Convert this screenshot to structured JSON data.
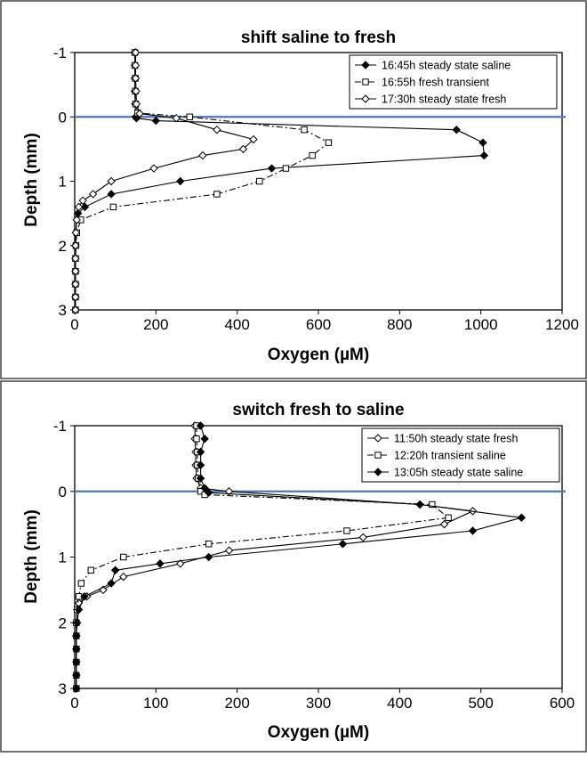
{
  "chart_data": [
    {
      "type": "line",
      "title": "shift saline to fresh",
      "xlabel": "Oxygen (µM)",
      "ylabel": "Depth (mm)",
      "xlim": [
        0,
        1200
      ],
      "ylim": [
        -1,
        3
      ],
      "y_inverted": true,
      "xticks": [
        0,
        200,
        400,
        600,
        800,
        1000,
        1200
      ],
      "yticks": [
        -1,
        0,
        1,
        2,
        3
      ],
      "surface_line": {
        "y": 0,
        "color": "#4a7ab8"
      },
      "legend_position": "top-right",
      "grid": false,
      "series": [
        {
          "name": "16:45h steady state saline",
          "marker": "filled-diamond",
          "line": "solid",
          "points": [
            [
              148,
              -1
            ],
            [
              148,
              -0.8
            ],
            [
              148,
              -0.6
            ],
            [
              148,
              -0.4
            ],
            [
              149,
              -0.2
            ],
            [
              150,
              0
            ],
            [
              152,
              0.02
            ],
            [
              200,
              0.06
            ],
            [
              940,
              0.2
            ],
            [
              1005,
              0.4
            ],
            [
              1008,
              0.6
            ],
            [
              485,
              0.8
            ],
            [
              260,
              1.0
            ],
            [
              90,
              1.2
            ],
            [
              25,
              1.4
            ],
            [
              8,
              1.5
            ],
            [
              5,
              1.6
            ],
            [
              3,
              1.8
            ],
            [
              2,
              2.0
            ],
            [
              2,
              2.2
            ],
            [
              2,
              2.4
            ],
            [
              2,
              2.6
            ],
            [
              2,
              2.8
            ],
            [
              2,
              3.0
            ]
          ]
        },
        {
          "name": "16:55h fresh transient",
          "marker": "open-square",
          "line": "dash-dot",
          "points": [
            [
              148,
              -1
            ],
            [
              148,
              -0.8
            ],
            [
              149,
              -0.6
            ],
            [
              149,
              -0.4
            ],
            [
              150,
              -0.2
            ],
            [
              155,
              -0.06
            ],
            [
              283,
              0.0
            ],
            [
              565,
              0.2
            ],
            [
              625,
              0.4
            ],
            [
              585,
              0.6
            ],
            [
              520,
              0.8
            ],
            [
              455,
              1.0
            ],
            [
              350,
              1.2
            ],
            [
              95,
              1.4
            ],
            [
              15,
              1.6
            ],
            [
              5,
              1.8
            ],
            [
              3,
              2.0
            ],
            [
              2,
              2.2
            ],
            [
              2,
              2.4
            ],
            [
              2,
              2.6
            ],
            [
              2,
              2.8
            ],
            [
              2,
              3.0
            ]
          ]
        },
        {
          "name": "17:30h steady state fresh",
          "marker": "open-diamond",
          "line": "solid",
          "points": [
            [
              150,
              -1
            ],
            [
              150,
              -0.8
            ],
            [
              150,
              -0.6
            ],
            [
              151,
              -0.4
            ],
            [
              152,
              -0.2
            ],
            [
              160,
              -0.05
            ],
            [
              250,
              0.02
            ],
            [
              350,
              0.2
            ],
            [
              440,
              0.35
            ],
            [
              415,
              0.5
            ],
            [
              315,
              0.6
            ],
            [
              195,
              0.8
            ],
            [
              90,
              1.0
            ],
            [
              45,
              1.2
            ],
            [
              20,
              1.3
            ],
            [
              10,
              1.4
            ],
            [
              5,
              1.6
            ],
            [
              3,
              1.8
            ],
            [
              2,
              2.0
            ],
            [
              2,
              2.2
            ],
            [
              2,
              2.4
            ],
            [
              2,
              2.6
            ],
            [
              2,
              2.8
            ],
            [
              2,
              3.0
            ]
          ]
        }
      ]
    },
    {
      "type": "line",
      "title": "switch fresh to saline",
      "xlabel": "Oxygen (µM)",
      "ylabel": "Depth (mm)",
      "xlim": [
        0,
        600
      ],
      "ylim": [
        -1,
        3
      ],
      "y_inverted": true,
      "xticks": [
        0,
        100,
        200,
        300,
        400,
        500,
        600
      ],
      "yticks": [
        -1,
        0,
        1,
        2,
        3
      ],
      "surface_line": {
        "y": 0,
        "color": "#4a7ab8"
      },
      "legend_position": "top-right",
      "grid": false,
      "series": [
        {
          "name": "11:50h steady state fresh",
          "marker": "open-diamond",
          "line": "solid",
          "points": [
            [
              148,
              -1
            ],
            [
              148,
              -0.8
            ],
            [
              149,
              -0.6
            ],
            [
              149,
              -0.4
            ],
            [
              150,
              -0.2
            ],
            [
              155,
              -0.05
            ],
            [
              190,
              0.0
            ],
            [
              425,
              0.2
            ],
            [
              490,
              0.3
            ],
            [
              455,
              0.5
            ],
            [
              355,
              0.7
            ],
            [
              190,
              0.9
            ],
            [
              130,
              1.1
            ],
            [
              60,
              1.3
            ],
            [
              35,
              1.5
            ],
            [
              15,
              1.6
            ],
            [
              5,
              1.7
            ],
            [
              3,
              1.8
            ],
            [
              2,
              2.0
            ],
            [
              2,
              2.2
            ],
            [
              2,
              2.4
            ],
            [
              2,
              2.6
            ],
            [
              2,
              2.8
            ],
            [
              2,
              3.0
            ]
          ]
        },
        {
          "name": "12:20h transient saline",
          "marker": "open-square",
          "line": "dash-dot",
          "points": [
            [
              150,
              -1
            ],
            [
              150,
              -0.8
            ],
            [
              151,
              -0.6
            ],
            [
              151,
              -0.4
            ],
            [
              152,
              -0.2
            ],
            [
              155,
              0.0
            ],
            [
              160,
              0.05
            ],
            [
              440,
              0.2
            ],
            [
              460,
              0.4
            ],
            [
              335,
              0.6
            ],
            [
              165,
              0.8
            ],
            [
              60,
              1.0
            ],
            [
              20,
              1.2
            ],
            [
              8,
              1.4
            ],
            [
              5,
              1.6
            ],
            [
              3,
              1.8
            ],
            [
              2,
              2.0
            ],
            [
              2,
              2.2
            ],
            [
              2,
              2.4
            ],
            [
              2,
              2.6
            ],
            [
              2,
              2.8
            ],
            [
              2,
              3.0
            ]
          ]
        },
        {
          "name": "13:05h steady state saline",
          "marker": "filled-diamond",
          "line": "solid",
          "points": [
            [
              155,
              -1
            ],
            [
              160,
              -0.8
            ],
            [
              155,
              -0.6
            ],
            [
              155,
              -0.4
            ],
            [
              155,
              -0.2
            ],
            [
              160,
              -0.05
            ],
            [
              165,
              0.02
            ],
            [
              425,
              0.2
            ],
            [
              550,
              0.4
            ],
            [
              490,
              0.6
            ],
            [
              330,
              0.8
            ],
            [
              165,
              1.0
            ],
            [
              105,
              1.1
            ],
            [
              50,
              1.2
            ],
            [
              45,
              1.4
            ],
            [
              12,
              1.6
            ],
            [
              5,
              1.8
            ],
            [
              3,
              2.0
            ],
            [
              2,
              2.2
            ],
            [
              2,
              2.4
            ],
            [
              2,
              2.6
            ],
            [
              2,
              2.8
            ],
            [
              2,
              3.0
            ]
          ]
        }
      ]
    }
  ]
}
